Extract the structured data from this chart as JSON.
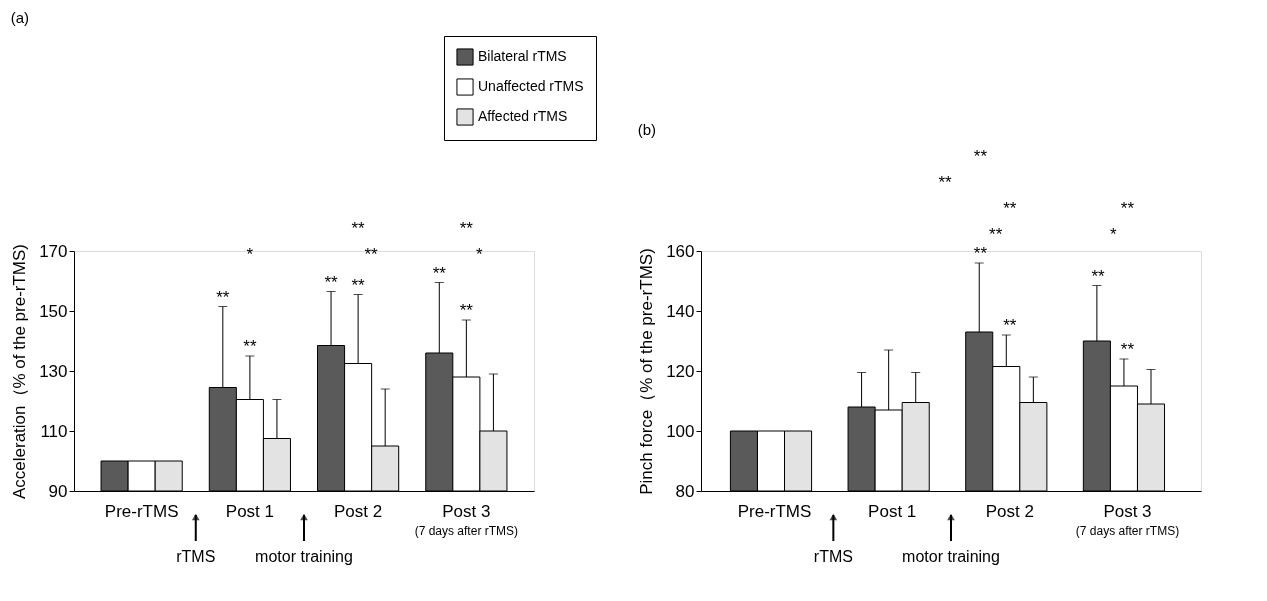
{
  "chart_data": [
    {
      "type": "bar",
      "title": "(a)",
      "ylabel": "Acceleration（% of the pre-rTMS)",
      "categories": [
        "Pre-rTMS",
        "Post 1",
        "Post 2",
        "Post 3"
      ],
      "ylim": [
        90,
        170
      ],
      "yticks": [
        90,
        110,
        130,
        150,
        170
      ],
      "grid": false,
      "legend": "top right",
      "series": [
        {
          "name": "Bilateral rTMS",
          "color": "#5a5a5a",
          "values": [
            100,
            124.5,
            138.5,
            136
          ],
          "errors": [
            null,
            [
              124.5,
              151.5
            ],
            [
              138.5,
              156.5
            ],
            [
              136,
              159.5
            ]
          ]
        },
        {
          "name": "Unaffected rTMS",
          "color": "#ffffff",
          "values": [
            100,
            120.5,
            132.5,
            128
          ],
          "errors": [
            null,
            [
              120.5,
              135
            ],
            [
              132.5,
              155.5
            ],
            [
              128,
              147
            ]
          ]
        },
        {
          "name": "Affected rTMS",
          "color": "#e3e3e3",
          "values": [
            100,
            107.5,
            105,
            110
          ],
          "errors": [
            null,
            [
              107.5,
              120.5
            ],
            [
              105,
              124
            ],
            [
              110,
              129
            ]
          ]
        }
      ],
      "annotations": [
        "*",
        "**",
        "**",
        "**",
        "*",
        "(7 days after rTMS)",
        "rTMS",
        "motor training",
        "**",
        "**",
        "**",
        "**",
        "**",
        "**"
      ]
    },
    {
      "type": "bar",
      "title": "(b)",
      "ylabel": "Pinch force（% of the pre-rTMS)",
      "categories": [
        "Pre-rTMS",
        "Post 1",
        "Post 2",
        "Post 3"
      ],
      "ylim": [
        80,
        160
      ],
      "yticks": [
        80,
        100,
        120,
        140,
        160
      ],
      "grid": false,
      "series": [
        {
          "color": "#5a5a5a",
          "values": [
            100,
            108,
            133,
            130
          ],
          "errors": [
            null,
            [
              108,
              119.5
            ],
            [
              133,
              156
            ],
            [
              130,
              148.5
            ]
          ]
        },
        {
          "color": "#ffffff",
          "values": [
            100,
            107,
            121.5,
            115
          ],
          "errors": [
            null,
            [
              107,
              127
            ],
            [
              121.5,
              132
            ],
            [
              115,
              124
            ]
          ]
        },
        {
          "color": "#e3e3e3",
          "values": [
            100,
            109.5,
            109.5,
            109
          ],
          "errors": [
            null,
            [
              109.5,
              119.5
            ],
            [
              109.5,
              118
            ],
            [
              109,
              120.5
            ]
          ]
        }
      ],
      "annotations": [
        "**",
        "**",
        "**",
        "**",
        "**",
        "*",
        "(7 days after rTMS)",
        "rTMS",
        "motor training",
        "**",
        "**",
        "**",
        "**"
      ]
    }
  ]
}
